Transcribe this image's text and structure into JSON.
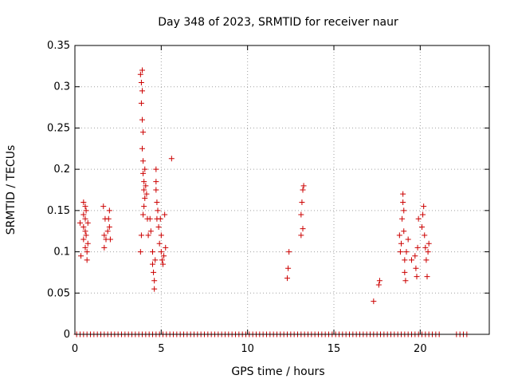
{
  "chart_data": {
    "type": "scatter",
    "title": "Day 348 of 2023, SRMTID for receiver naur",
    "xlabel": "GPS time / hours",
    "ylabel": "SRMTID / TECUs",
    "xlim": [
      0,
      24
    ],
    "ylim": [
      0,
      0.35
    ],
    "xticks": [
      0,
      5,
      10,
      15,
      20
    ],
    "yticks": [
      0,
      0.05,
      0.1,
      0.15,
      0.2,
      0.25,
      0.3,
      0.35
    ],
    "xtick_labels": [
      "0",
      "5",
      "10",
      "15",
      "20"
    ],
    "ytick_labels": [
      "0",
      "0.05",
      "0.1",
      "0.15",
      "0.2",
      "0.25",
      "0.3",
      "0.35"
    ],
    "grid": true,
    "marker": "+",
    "color": "#cc0000",
    "series": [
      {
        "name": "SRMTID",
        "points": [
          [
            0.3,
            0.135
          ],
          [
            0.35,
            0.095
          ],
          [
            0.5,
            0.16
          ],
          [
            0.5,
            0.145
          ],
          [
            0.5,
            0.13
          ],
          [
            0.5,
            0.115
          ],
          [
            0.6,
            0.155
          ],
          [
            0.6,
            0.14
          ],
          [
            0.6,
            0.125
          ],
          [
            0.6,
            0.105
          ],
          [
            0.65,
            0.15
          ],
          [
            0.65,
            0.12
          ],
          [
            0.7,
            0.1
          ],
          [
            0.7,
            0.09
          ],
          [
            0.75,
            0.11
          ],
          [
            0.75,
            0.135
          ],
          [
            1.65,
            0.155
          ],
          [
            1.7,
            0.12
          ],
          [
            1.7,
            0.105
          ],
          [
            1.75,
            0.14
          ],
          [
            1.8,
            0.115
          ],
          [
            1.9,
            0.125
          ],
          [
            1.95,
            0.14
          ],
          [
            2.0,
            0.15
          ],
          [
            2.0,
            0.13
          ],
          [
            2.05,
            0.115
          ],
          [
            3.8,
            0.315
          ],
          [
            3.85,
            0.305
          ],
          [
            3.85,
            0.28
          ],
          [
            3.9,
            0.32
          ],
          [
            3.9,
            0.295
          ],
          [
            3.9,
            0.26
          ],
          [
            3.95,
            0.245
          ],
          [
            3.9,
            0.225
          ],
          [
            3.95,
            0.21
          ],
          [
            3.95,
            0.195
          ],
          [
            4.0,
            0.185
          ],
          [
            4.0,
            0.175
          ],
          [
            4.05,
            0.165
          ],
          [
            4.0,
            0.155
          ],
          [
            3.95,
            0.145
          ],
          [
            3.8,
            0.1
          ],
          [
            3.85,
            0.12
          ],
          [
            4.05,
            0.2
          ],
          [
            4.1,
            0.18
          ],
          [
            4.15,
            0.17
          ],
          [
            4.2,
            0.14
          ],
          [
            4.25,
            0.12
          ],
          [
            4.35,
            0.14
          ],
          [
            4.4,
            0.125
          ],
          [
            4.5,
            0.1
          ],
          [
            4.5,
            0.085
          ],
          [
            4.55,
            0.075
          ],
          [
            4.6,
            0.065
          ],
          [
            4.6,
            0.055
          ],
          [
            4.65,
            0.09
          ],
          [
            4.7,
            0.2
          ],
          [
            4.7,
            0.185
          ],
          [
            4.7,
            0.175
          ],
          [
            4.75,
            0.16
          ],
          [
            4.75,
            0.14
          ],
          [
            4.8,
            0.15
          ],
          [
            4.85,
            0.13
          ],
          [
            4.9,
            0.11
          ],
          [
            4.95,
            0.14
          ],
          [
            5.0,
            0.12
          ],
          [
            5.0,
            0.1
          ],
          [
            5.05,
            0.09
          ],
          [
            5.1,
            0.085
          ],
          [
            5.15,
            0.095
          ],
          [
            5.2,
            0.145
          ],
          [
            5.25,
            0.105
          ],
          [
            5.6,
            0.213
          ],
          [
            12.3,
            0.068
          ],
          [
            12.35,
            0.08
          ],
          [
            12.4,
            0.1
          ],
          [
            13.1,
            0.12
          ],
          [
            13.1,
            0.145
          ],
          [
            13.15,
            0.16
          ],
          [
            13.2,
            0.175
          ],
          [
            13.25,
            0.18
          ],
          [
            13.2,
            0.128
          ],
          [
            17.3,
            0.04
          ],
          [
            17.6,
            0.06
          ],
          [
            17.65,
            0.065
          ],
          [
            18.8,
            0.12
          ],
          [
            18.85,
            0.1
          ],
          [
            18.9,
            0.11
          ],
          [
            18.95,
            0.14
          ],
          [
            19.0,
            0.17
          ],
          [
            19.0,
            0.16
          ],
          [
            19.05,
            0.15
          ],
          [
            19.05,
            0.125
          ],
          [
            19.1,
            0.09
          ],
          [
            19.1,
            0.075
          ],
          [
            19.15,
            0.065
          ],
          [
            19.2,
            0.1
          ],
          [
            19.3,
            0.115
          ],
          [
            19.5,
            0.09
          ],
          [
            19.7,
            0.095
          ],
          [
            19.75,
            0.08
          ],
          [
            19.8,
            0.07
          ],
          [
            19.85,
            0.105
          ],
          [
            19.9,
            0.14
          ],
          [
            20.1,
            0.13
          ],
          [
            20.15,
            0.145
          ],
          [
            20.2,
            0.155
          ],
          [
            20.25,
            0.12
          ],
          [
            20.3,
            0.105
          ],
          [
            20.35,
            0.09
          ],
          [
            20.4,
            0.07
          ],
          [
            20.45,
            0.1
          ],
          [
            20.5,
            0.11
          ]
        ]
      },
      {
        "name": "zero-baseline",
        "points_x": [
          0.1,
          0.3,
          0.5,
          0.7,
          0.9,
          1.1,
          1.3,
          1.5,
          1.7,
          1.9,
          2.1,
          2.3,
          2.5,
          2.7,
          2.9,
          3.1,
          3.3,
          3.5,
          3.7,
          3.9,
          4.1,
          4.3,
          4.5,
          4.7,
          4.9,
          5.1,
          5.3,
          5.5,
          5.7,
          5.9,
          6.1,
          6.3,
          6.5,
          6.7,
          6.9,
          7.1,
          7.3,
          7.5,
          7.7,
          7.9,
          8.1,
          8.3,
          8.5,
          8.7,
          8.9,
          9.1,
          9.3,
          9.5,
          9.7,
          9.9,
          10.1,
          10.3,
          10.5,
          10.7,
          10.9,
          11.1,
          11.3,
          11.5,
          11.7,
          11.9,
          12.1,
          12.3,
          12.5,
          12.7,
          12.9,
          13.1,
          13.3,
          13.5,
          13.7,
          13.9,
          14.1,
          14.3,
          14.5,
          14.7,
          14.9,
          15.1,
          15.3,
          15.5,
          15.7,
          15.9,
          16.1,
          16.3,
          16.5,
          16.7,
          16.9,
          17.1,
          17.3,
          17.5,
          17.7,
          17.9,
          18.1,
          18.3,
          18.5,
          18.7,
          18.9,
          19.1,
          19.3,
          19.5,
          19.7,
          19.9,
          20.1,
          20.3,
          20.5,
          20.7,
          20.9,
          21.1,
          22.1,
          22.3,
          22.5,
          22.7
        ]
      }
    ]
  }
}
